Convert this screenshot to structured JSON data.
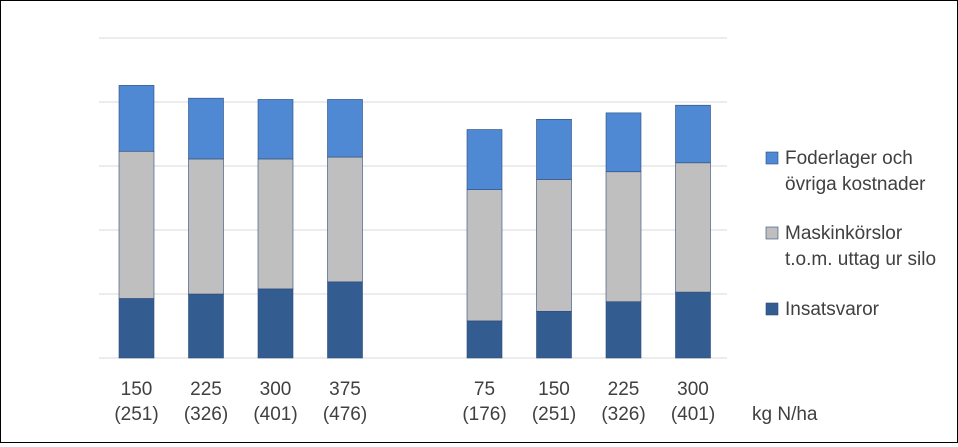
{
  "chart_data": {
    "type": "bar",
    "stacked": true,
    "categories": [
      [
        "150",
        "(251)"
      ],
      [
        "225",
        "(326)"
      ],
      [
        "300",
        "(401)"
      ],
      [
        "375",
        "(476)"
      ],
      [
        "75",
        "(176)"
      ],
      [
        "150",
        "(251)"
      ],
      [
        "225",
        "(326)"
      ],
      [
        "300",
        "(401)"
      ]
    ],
    "groups": [
      [
        0,
        1,
        2,
        3
      ],
      [
        4,
        5,
        6,
        7
      ]
    ],
    "series": [
      {
        "name": "Insatsvaror",
        "color": "#335C91",
        "values": [
          0.93,
          1.0,
          1.08,
          1.19,
          0.58,
          0.73,
          0.88,
          1.03
        ]
      },
      {
        "name": "Maskinkörslor t.o.m. uttag ur silo",
        "color": "#BFBFBF",
        "values": [
          2.3,
          2.11,
          2.03,
          1.95,
          2.05,
          2.06,
          2.03,
          2.02
        ]
      },
      {
        "name": "Foderlager och övriga kostnader",
        "color": "#4F88D3",
        "values": [
          1.03,
          0.95,
          0.93,
          0.9,
          0.94,
          0.94,
          0.92,
          0.9
        ]
      }
    ],
    "legend_labels": [
      [
        "Foderlager och",
        "övriga kostnader"
      ],
      [
        "Maskinkörslor",
        "t.o.m. uttag ur silo"
      ],
      [
        "Insatsvaror"
      ]
    ],
    "legend_colors": [
      "#4F88D3",
      "#BFBFBF",
      "#335C91"
    ],
    "xlabel": "kg N/ha",
    "ylim": [
      0,
      5
    ],
    "gridlines": true,
    "legend_position": "right",
    "y_tick_labels": false
  }
}
